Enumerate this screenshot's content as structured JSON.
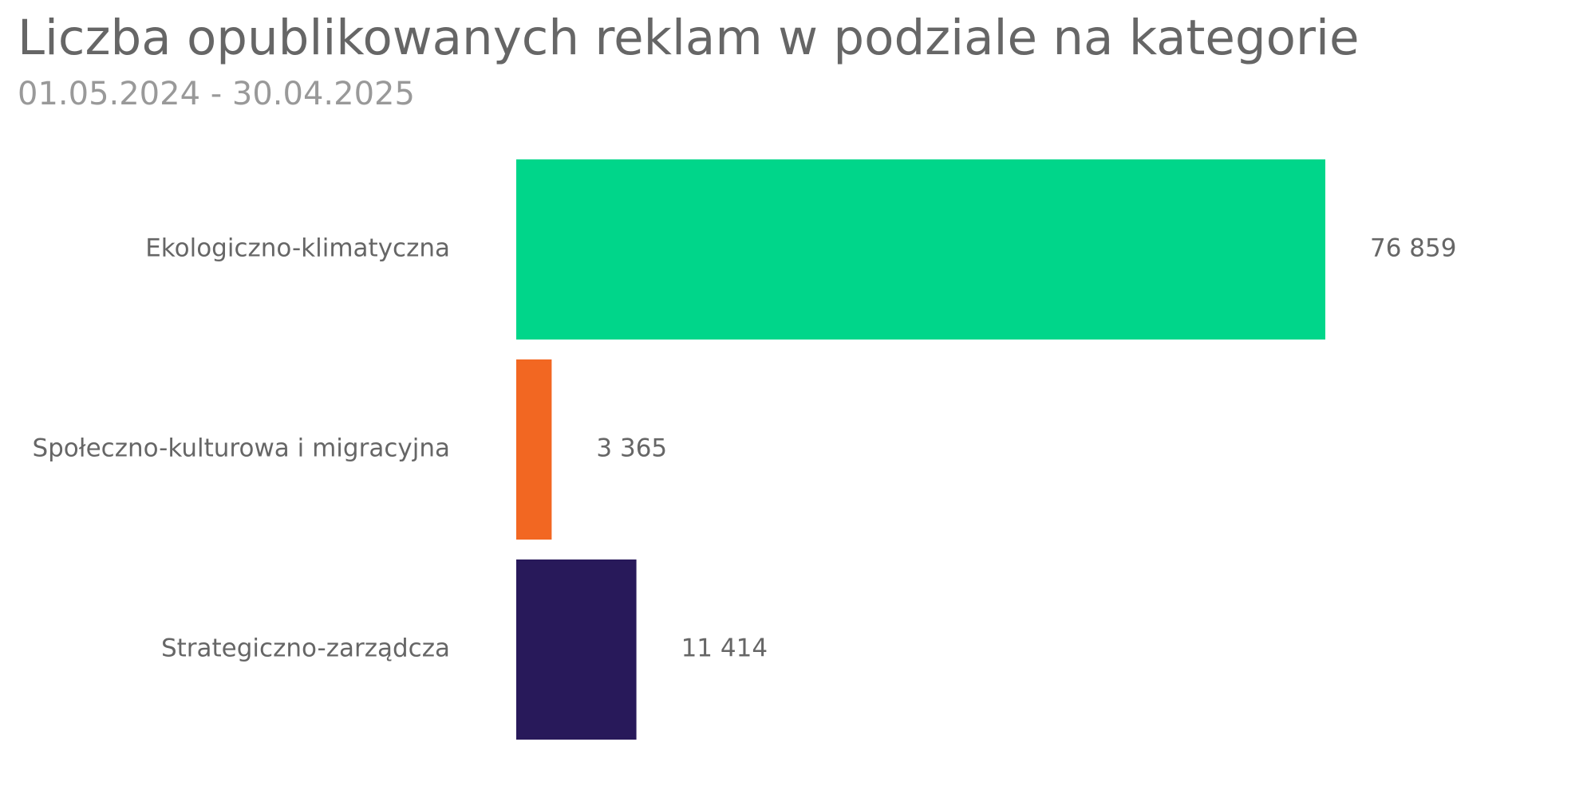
{
  "header": {
    "title": "Liczba opublikowanych reklam w podziale na kategorie",
    "subtitle": "01.05.2024 - 30.04.2025"
  },
  "chart_data": {
    "type": "bar",
    "orientation": "horizontal",
    "title": "Liczba opublikowanych reklam w podziale na kategorie",
    "subtitle": "01.05.2024 - 30.04.2025",
    "xlabel": "",
    "ylabel": "",
    "grid": false,
    "legend": "none",
    "xlim": [
      0,
      76859
    ],
    "categories": [
      "Ekologiczno-klimatyczna",
      "Społeczno-kulturowa i migracyjna",
      "Strategiczno-zarządcza"
    ],
    "values": [
      76859,
      3365,
      11414
    ],
    "value_labels": [
      "76 859",
      "3 365",
      "11 414"
    ],
    "colors": [
      "#00D68A",
      "#F26722",
      "#28195A"
    ]
  }
}
